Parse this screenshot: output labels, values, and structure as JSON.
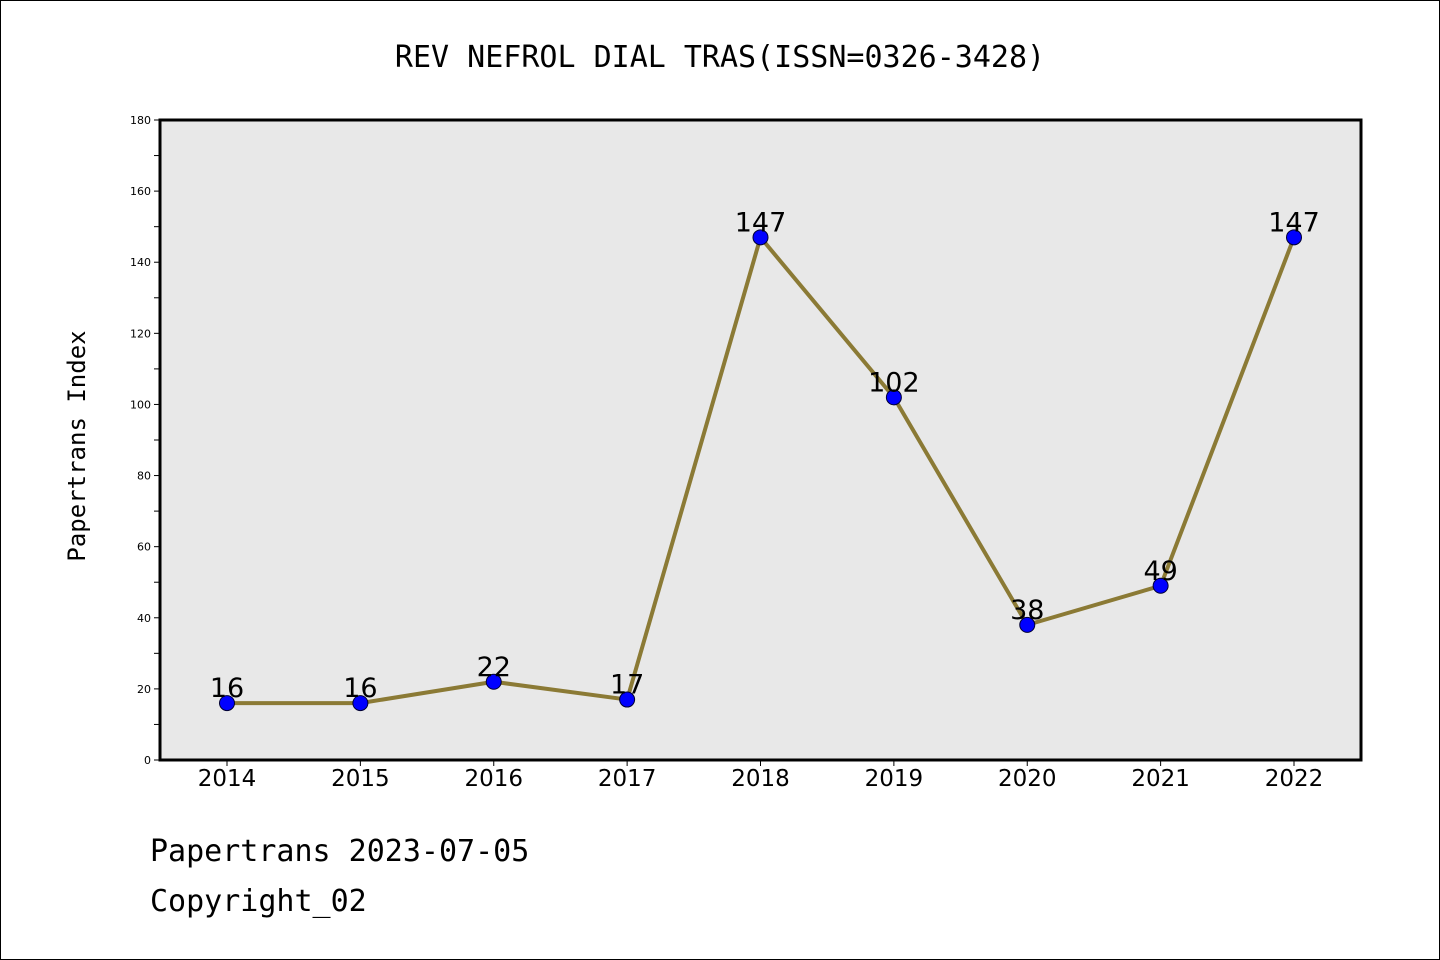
{
  "chart_data": {
    "type": "line",
    "title": "REV NEFROL DIAL TRAS(ISSN=0326-3428)",
    "xlabel": "",
    "ylabel": "Papertrans Index",
    "categories": [
      "2014",
      "2015",
      "2016",
      "2017",
      "2018",
      "2019",
      "2020",
      "2021",
      "2022"
    ],
    "series": [
      {
        "values": [
          16,
          16,
          22,
          17,
          147,
          102,
          38,
          49,
          147
        ]
      }
    ],
    "ylim": [
      0,
      180
    ],
    "yticks": [
      0,
      20,
      40,
      60,
      80,
      100,
      120,
      140,
      160,
      180
    ],
    "data_labels": [
      "16",
      "16",
      "22",
      "17",
      "147",
      "102",
      "38",
      "49",
      "147"
    ],
    "grid": false,
    "legend": "none",
    "colors": {
      "line": "#8b7a35",
      "marker": "#0000ff",
      "plot_background": "#e8e8e8"
    }
  },
  "footer": {
    "date_line": "Papertrans 2023-07-05",
    "copyright_line": "Copyright_02"
  }
}
